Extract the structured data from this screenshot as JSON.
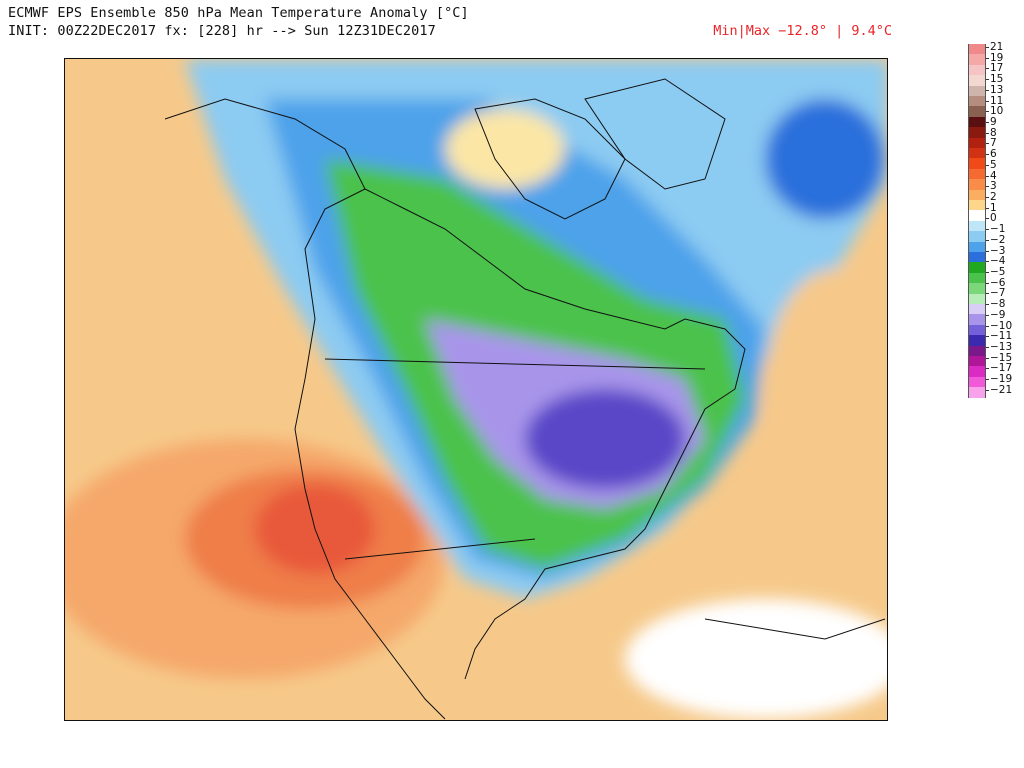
{
  "header": {
    "title": "ECMWF EPS Ensemble 850 hPa Mean Temperature Anomaly [°C]",
    "init_line": "INIT: 00Z22DEC2017 fx: [228] hr --> Sun 12Z31DEC2017",
    "minmax_label": "Min|Max −12.8° | 9.4°C"
  },
  "map": {
    "region": "North America",
    "land_outline_color": "#111111",
    "background_anomaly_color": "#f6c98a"
  },
  "colorbar": {
    "labels": [
      "21",
      "19",
      "17",
      "15",
      "13",
      "11",
      "10",
      "9",
      "8",
      "7",
      "6",
      "5",
      "4",
      "3",
      "2",
      "1",
      "0",
      "−1",
      "−2",
      "−3",
      "−4",
      "−5",
      "−6",
      "−7",
      "−8",
      "−9",
      "−10",
      "−11",
      "−13",
      "−15",
      "−17",
      "−19",
      "−21"
    ],
    "colors": [
      "#f08a8a",
      "#f4a8a8",
      "#f6c4c4",
      "#f2d8d0",
      "#cfb4ac",
      "#b48c80",
      "#8a6050",
      "#5a1010",
      "#8a1a10",
      "#b22010",
      "#d23214",
      "#f04a18",
      "#f56a30",
      "#f88c48",
      "#fbae62",
      "#fdd68c",
      "#ffffff",
      "#bfe6f6",
      "#8ccbf2",
      "#4ea2ea",
      "#2b6fdc",
      "#21a821",
      "#4bc24b",
      "#7ad87a",
      "#b8ecb8",
      "#d8cef6",
      "#a895ea",
      "#7460d8",
      "#3b2ab0",
      "#7a1a8a",
      "#b0169a",
      "#dc2ac4",
      "#f05ad8",
      "#f8a2ec"
    ]
  }
}
